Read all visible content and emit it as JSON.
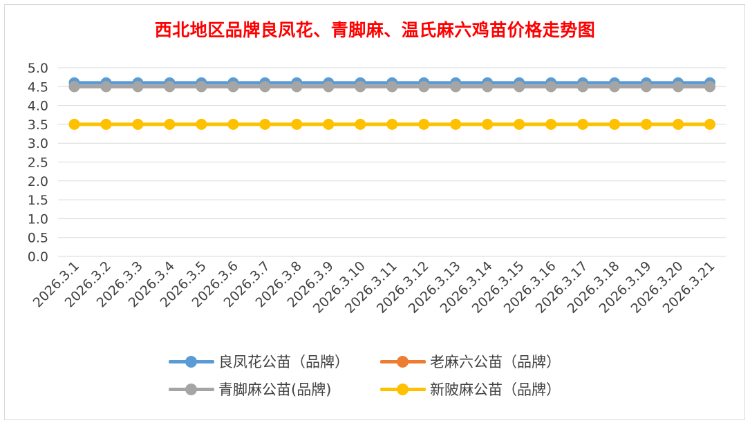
{
  "chart_data": {
    "type": "line",
    "title": "西北地区品牌良凤花、青脚麻、温氏麻六鸡苗价格走势图",
    "categories": [
      "2026.3.1",
      "2026.3.2",
      "2026.3.3",
      "2026.3.4",
      "2026.3.5",
      "2026.3.6",
      "2026.3.7",
      "2026.3.8",
      "2026.3.9",
      "2026.3.10",
      "2026.3.11",
      "2026.3.12",
      "2026.3.13",
      "2026.3.14",
      "2026.3.15",
      "2026.3.16",
      "2026.3.17",
      "2026.3.18",
      "2026.3.19",
      "2026.3.20",
      "2026.3.21"
    ],
    "ylim": [
      0,
      5
    ],
    "yticks": [
      "0.0",
      "0.5",
      "1.0",
      "1.5",
      "2.0",
      "2.5",
      "3.0",
      "3.5",
      "4.0",
      "4.5",
      "5.0"
    ],
    "grid": true,
    "legend_position": "bottom",
    "series": [
      {
        "name": "良凤花公苗（品牌）",
        "color": "#5b9bd5",
        "values": [
          4.6,
          4.6,
          4.6,
          4.6,
          4.6,
          4.6,
          4.6,
          4.6,
          4.6,
          4.6,
          4.6,
          4.6,
          4.6,
          4.6,
          4.6,
          4.6,
          4.6,
          4.6,
          4.6,
          4.6,
          4.6
        ]
      },
      {
        "name": "老麻六公苗（品牌）",
        "color": "#ed7d31",
        "values": [
          4.5,
          4.5,
          4.5,
          4.5,
          4.5,
          4.5,
          4.5,
          4.5,
          4.5,
          4.5,
          4.5,
          4.5,
          4.5,
          4.5,
          4.5,
          4.5,
          4.5,
          4.5,
          4.5,
          4.5,
          4.5
        ]
      },
      {
        "name": "青脚麻公苗(品牌)",
        "color": "#a5a5a5",
        "values": [
          4.5,
          4.5,
          4.5,
          4.5,
          4.5,
          4.5,
          4.5,
          4.5,
          4.5,
          4.5,
          4.5,
          4.5,
          4.5,
          4.5,
          4.5,
          4.5,
          4.5,
          4.5,
          4.5,
          4.5,
          4.5
        ]
      },
      {
        "name": "新陂麻公苗（品牌）",
        "color": "#ffc000",
        "values": [
          3.5,
          3.5,
          3.5,
          3.5,
          3.5,
          3.5,
          3.5,
          3.5,
          3.5,
          3.5,
          3.5,
          3.5,
          3.5,
          3.5,
          3.5,
          3.5,
          3.5,
          3.5,
          3.5,
          3.5,
          3.5
        ]
      }
    ]
  }
}
